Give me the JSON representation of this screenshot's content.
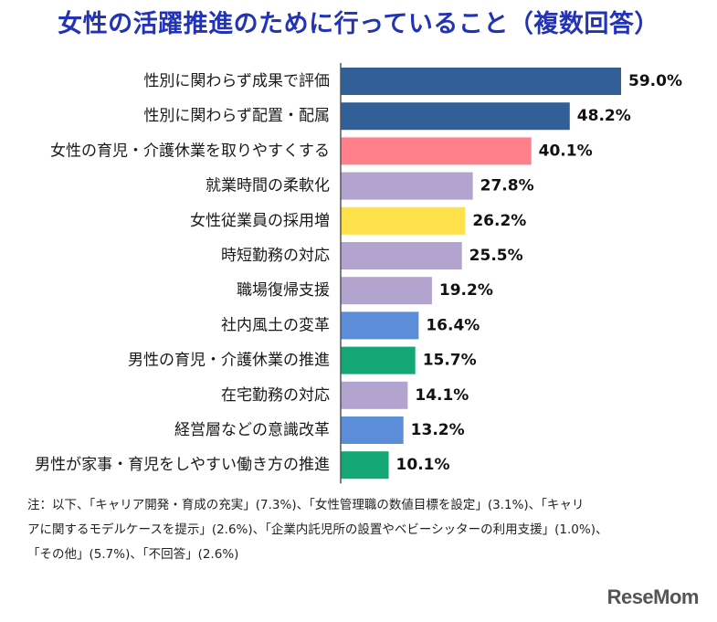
{
  "chart_data": {
    "type": "bar",
    "orientation": "horizontal",
    "title": "女性の活躍推進のために行っていること（複数回答）",
    "categories": [
      "性別に関わらず成果で評価",
      "性別に関わらず配置・配属",
      "女性の育児・介護休業を取りやすくする",
      "就業時間の柔軟化",
      "女性従業員の採用増",
      "時短勤務の対応",
      "職場復帰支援",
      "社内風土の変革",
      "男性の育児・介護休業の推進",
      "在宅勤務の対応",
      "経営層などの意識改革",
      "男性が家事・育児をしやすい働き方の推進"
    ],
    "values": [
      59.0,
      48.2,
      40.1,
      27.8,
      26.2,
      25.5,
      19.2,
      16.4,
      15.7,
      14.1,
      13.2,
      10.1
    ],
    "value_labels": [
      "59.0%",
      "48.2%",
      "40.1%",
      "27.8%",
      "26.2%",
      "25.5%",
      "19.2%",
      "16.4%",
      "15.7%",
      "14.1%",
      "13.2%",
      "10.1%"
    ],
    "colors": [
      "#335f99",
      "#335f99",
      "#ff7f8a",
      "#b2a3cf",
      "#fde04a",
      "#b2a3cf",
      "#b2a3cf",
      "#5b8dd8",
      "#14a775",
      "#b2a3cf",
      "#5b8dd8",
      "#14a775"
    ],
    "xlim": [
      0,
      60
    ],
    "xlabel": "",
    "ylabel": "",
    "legend": "none"
  },
  "note_lines": [
    "注：以下、「キャリア開発・育成の充実」(7.3%)、「女性管理職の数値目標を設定」(3.1%)、「キャリ",
    "アに関するモデルケースを提示」(2.6%)、「企業内託児所の設置やベビーシッターの利用支援」(1.0%)、",
    "「その他」(5.7%)、「不回答」(2.6%)"
  ],
  "logo_text": "ReseMom",
  "colors": {
    "title": "#2233b5",
    "axis": "#555555"
  }
}
